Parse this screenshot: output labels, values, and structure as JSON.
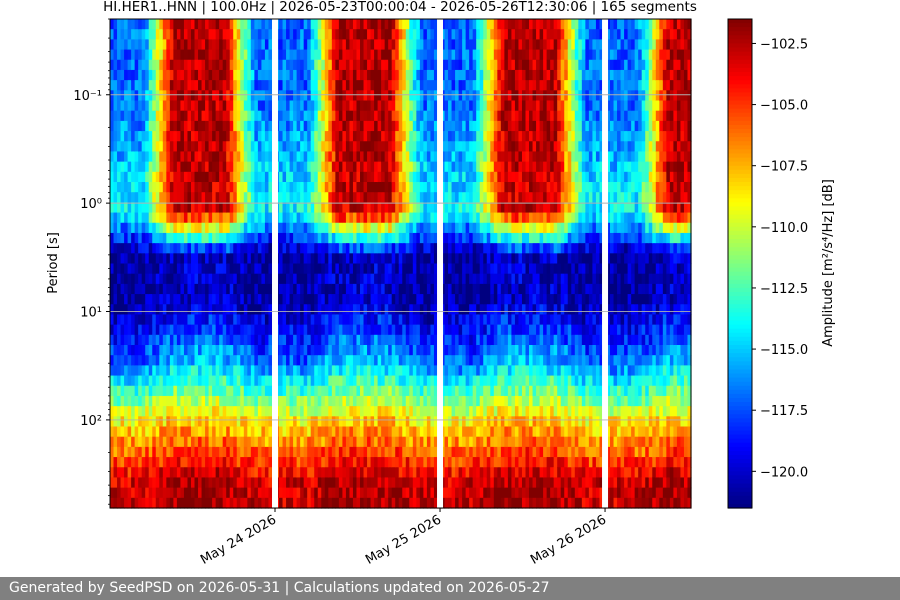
{
  "chart_data": {
    "type": "heatmap",
    "title": "HI.HER1..HNN | 100.0Hz | 2026-05-23T00:00:04 - 2026-05-26T12:30:06 | 165 segments",
    "xlabel": "",
    "ylabel": "Period [s]",
    "colorbar_label": "Amplitude [m²/s⁴/Hz] [dB]",
    "colormap": "jet",
    "y_scale": "log",
    "y_inverted": true,
    "ylim": [
      0.02,
      650
    ],
    "y_ticks": [
      {
        "value": 0.1,
        "label": "10⁻¹"
      },
      {
        "value": 1,
        "label": "10⁰"
      },
      {
        "value": 10,
        "label": "10¹"
      },
      {
        "value": 100,
        "label": "10²"
      }
    ],
    "xlim": [
      "2026-05-23T00:00:04",
      "2026-05-26T12:30:06"
    ],
    "x_ticks": [
      {
        "value": "2026-05-24",
        "label": "May 24 2026"
      },
      {
        "value": "2026-05-25",
        "label": "May 25 2026"
      },
      {
        "value": "2026-05-26",
        "label": "May 26 2026"
      }
    ],
    "data_gaps": [
      "2026-05-24",
      "2026-05-25",
      "2026-05-26"
    ],
    "color_range": [
      -121.5,
      -101.5
    ],
    "colorbar_ticks": [
      -102.5,
      -105.0,
      -107.5,
      -110.0,
      -112.5,
      -115.0,
      -117.5,
      -120.0
    ],
    "colorbar_tick_labels": [
      "−102.5",
      "−105.0",
      "−107.5",
      "−110.0",
      "−112.5",
      "−115.0",
      "−117.5",
      "−120.0"
    ],
    "grid": true,
    "segments": 165,
    "period_bands": [
      {
        "period": 0.1,
        "amplitude_day": -102.5,
        "amplitude_night": -117
      },
      {
        "period": 1.2,
        "amplitude_day": -103,
        "amplitude_night": -114
      },
      {
        "period": 3,
        "amplitude_day": -120,
        "amplitude_night": -121
      },
      {
        "period": 8,
        "amplitude_day": -120,
        "amplitude_night": -121
      },
      {
        "period": 30,
        "amplitude_day": -115,
        "amplitude_night": -117
      },
      {
        "period": 100,
        "amplitude_day": -108,
        "amplitude_night": -109
      },
      {
        "period": 400,
        "amplitude_day": -102,
        "amplitude_night": -103
      }
    ]
  },
  "footer": {
    "text": "Generated by SeedPSD on 2026-05-31 | Calculations updated on 2026-05-27"
  }
}
